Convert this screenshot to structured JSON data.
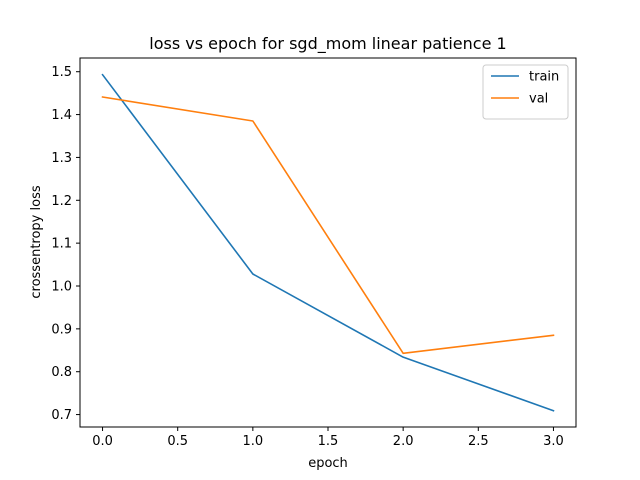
{
  "chart_data": {
    "type": "line",
    "title": "loss vs epoch for sgd_mom linear patience 1",
    "xlabel": "epoch",
    "ylabel": "crossentropy loss",
    "x": [
      0,
      1,
      2,
      3
    ],
    "series": [
      {
        "name": "train",
        "values": [
          1.493,
          1.028,
          0.834,
          0.709
        ],
        "color": "#1f77b4"
      },
      {
        "name": "val",
        "values": [
          1.441,
          1.385,
          0.843,
          0.885
        ],
        "color": "#ff7f0e"
      }
    ],
    "xlim": [
      -0.15,
      3.15
    ],
    "ylim": [
      0.671,
      1.532
    ],
    "xticks": [
      0.0,
      0.5,
      1.0,
      1.5,
      2.0,
      2.5,
      3.0
    ],
    "xtick_labels": [
      "0.0",
      "0.5",
      "1.0",
      "1.5",
      "2.0",
      "2.5",
      "3.0"
    ],
    "yticks": [
      0.7,
      0.8,
      0.9,
      1.0,
      1.1,
      1.2,
      1.3,
      1.4,
      1.5
    ],
    "ytick_labels": [
      "0.7",
      "0.8",
      "0.9",
      "1.0",
      "1.1",
      "1.2",
      "1.3",
      "1.4",
      "1.5"
    ],
    "grid": false,
    "legend_position": "top-right"
  }
}
